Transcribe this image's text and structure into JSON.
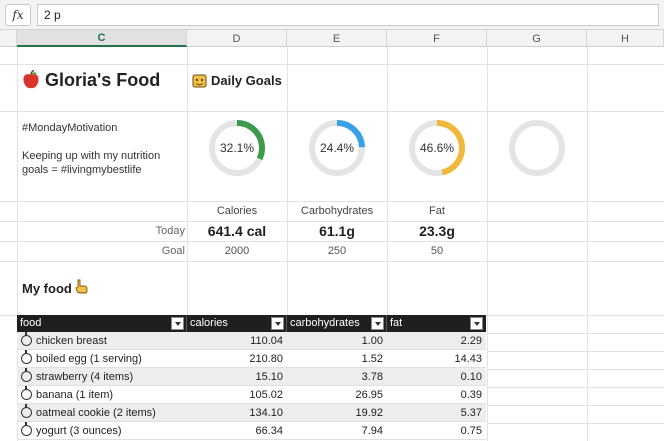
{
  "formula_bar": {
    "fx_label": "fx",
    "value": "2 p"
  },
  "columns": [
    "C",
    "D",
    "E",
    "F",
    "G",
    "H"
  ],
  "sheet": {
    "title": "Gloria's Food",
    "daily_goals_label": "Daily Goals",
    "motivation": "#MondayMotivation",
    "note_line1": "Keeping up with my nutrition",
    "note_line2": "goals = #livingmybestlife",
    "section_title": "My food"
  },
  "goals": [
    {
      "name": "Calories",
      "percent_label": "32.1%",
      "percent": 0.321,
      "color": "#3c9b4c",
      "today": "641.4 cal",
      "goal": "2000"
    },
    {
      "name": "Carbohydrates",
      "percent_label": "24.4%",
      "percent": 0.244,
      "color": "#3aa0e8",
      "today": "61.1g",
      "goal": "250"
    },
    {
      "name": "Fat",
      "percent_label": "46.6%",
      "percent": 0.466,
      "color": "#f1b93b",
      "today": "23.3g",
      "goal": "50"
    }
  ],
  "row_labels": {
    "today": "Today",
    "goal": "Goal"
  },
  "table": {
    "headers": [
      "food",
      "calories",
      "carbohydrates",
      "fat"
    ],
    "rows": [
      {
        "food": "chicken breast",
        "calories": "110.04",
        "carbohydrates": "1.00",
        "fat": "2.29"
      },
      {
        "food": "boiled egg (1 serving)",
        "calories": "210.80",
        "carbohydrates": "1.52",
        "fat": "14.43"
      },
      {
        "food": "strawberry (4 items)",
        "calories": "15.10",
        "carbohydrates": "3.78",
        "fat": "0.10"
      },
      {
        "food": "banana (1 item)",
        "calories": "105.02",
        "carbohydrates": "26.95",
        "fat": "0.39"
      },
      {
        "food": "oatmeal cookie (2 items)",
        "calories": "134.10",
        "carbohydrates": "19.92",
        "fat": "5.37"
      },
      {
        "food": "yogurt (3 ounces)",
        "calories": "66.34",
        "carbohydrates": "7.94",
        "fat": "0.75"
      }
    ]
  }
}
